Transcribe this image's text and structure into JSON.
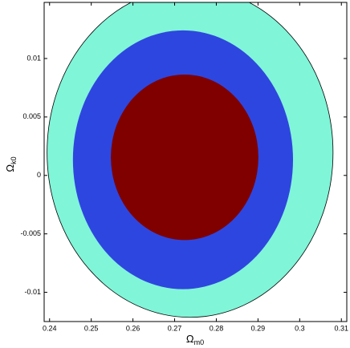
{
  "chart_data": {
    "type": "contour",
    "xlabel": {
      "text": "Ω",
      "subscript": "m0"
    },
    "ylabel": {
      "text": "Ω",
      "subscript": "k0"
    },
    "xlim": [
      0.2387,
      0.3113
    ],
    "ylim": [
      -0.0125,
      0.0148
    ],
    "xticks": [
      0.24,
      0.25,
      0.26,
      0.27,
      0.28,
      0.29,
      0.3,
      0.31
    ],
    "yticks": [
      -0.01,
      -0.005,
      0,
      0.005,
      0.01
    ],
    "regions": [
      {
        "color": "#80f5d8",
        "center": [
          0.2737,
          0.00196
        ],
        "radius": [
          0.0343,
          0.0141
        ]
      },
      {
        "color": "#2e46e0",
        "center": [
          0.272,
          0.00134
        ],
        "radius": [
          0.0264,
          0.01107
        ]
      },
      {
        "color": "#800000",
        "center": [
          0.2724,
          0.00155
        ],
        "radius": [
          0.0177,
          0.00708
        ]
      }
    ]
  }
}
